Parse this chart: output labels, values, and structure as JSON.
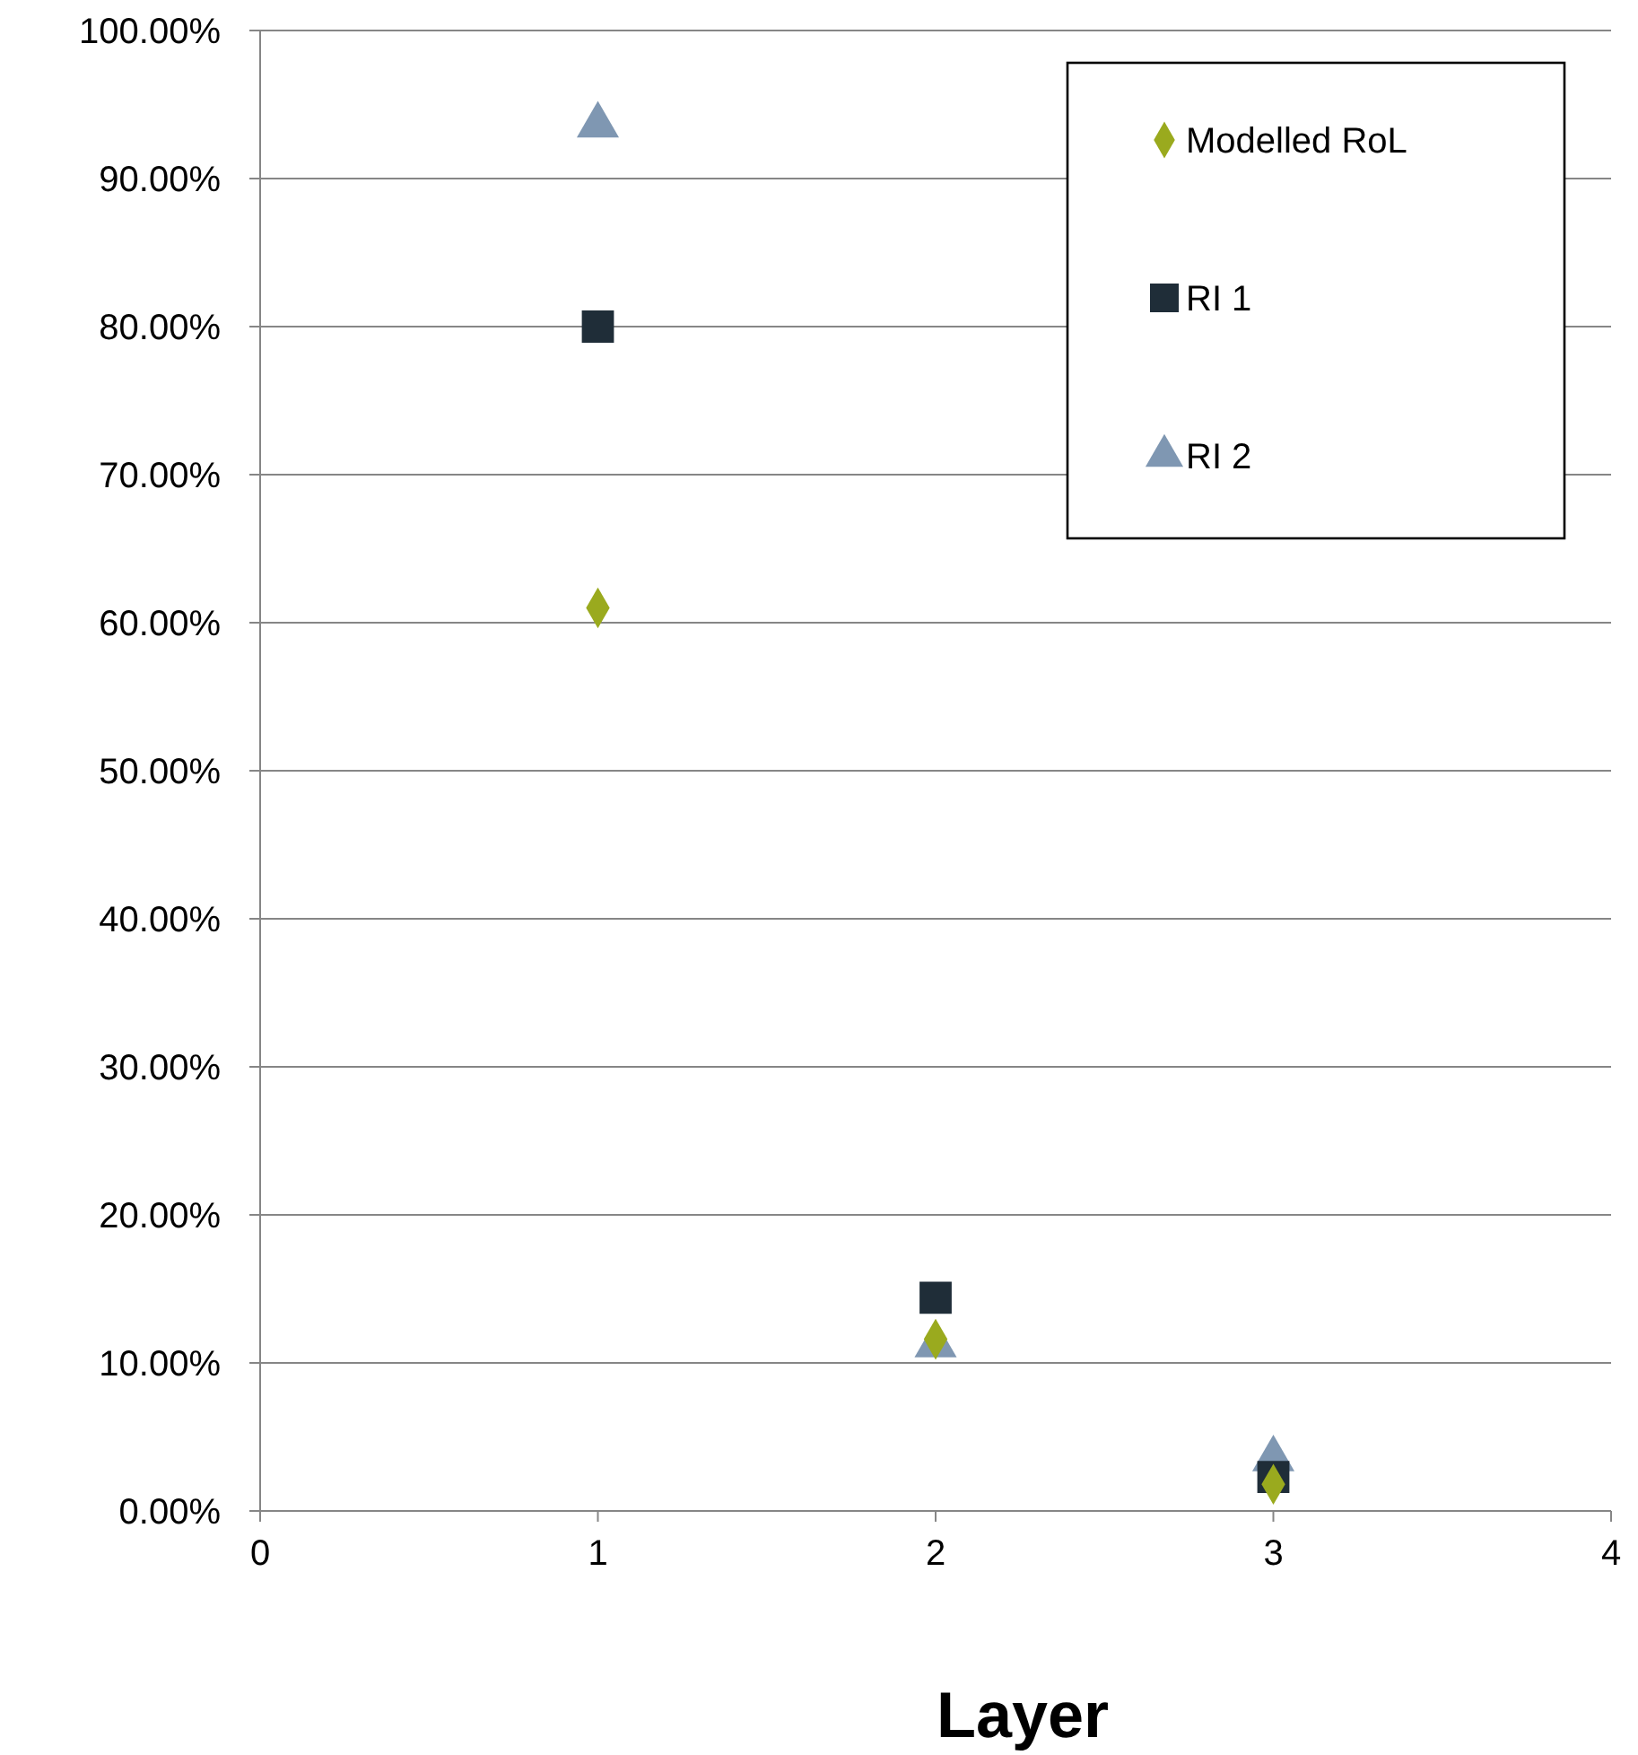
{
  "chart_data": {
    "type": "scatter",
    "xlabel": "Layer",
    "x": [
      1,
      2,
      3
    ],
    "series": [
      {
        "name": "Modelled RoL",
        "color": "#9aaa1e",
        "marker": "diamond",
        "values": [
          61,
          11.6,
          1.8
        ]
      },
      {
        "name": "RI 1",
        "color": "#1f2d38",
        "marker": "square",
        "values": [
          80,
          14.4,
          2.3
        ]
      },
      {
        "name": "RI 2",
        "color": "#7f97b2",
        "marker": "triangle",
        "values": [
          93.6,
          11.2,
          3.5
        ]
      }
    ],
    "xlim": [
      0,
      4
    ],
    "xticks": [
      0,
      1,
      2,
      3,
      4
    ],
    "ylim": [
      0,
      100
    ],
    "yticks": [
      {
        "value": 0,
        "label": "0.00%"
      },
      {
        "value": 10,
        "label": "10.00%"
      },
      {
        "value": 20,
        "label": "20.00%"
      },
      {
        "value": 30,
        "label": "30.00%"
      },
      {
        "value": 40,
        "label": "40.00%"
      },
      {
        "value": 50,
        "label": "50.00%"
      },
      {
        "value": 60,
        "label": "60.00%"
      },
      {
        "value": 70,
        "label": "70.00%"
      },
      {
        "value": 80,
        "label": "80.00%"
      },
      {
        "value": 90,
        "label": "90.00%"
      },
      {
        "value": 100,
        "label": "100.00%"
      }
    ],
    "grid": "y",
    "legend": "top right"
  }
}
